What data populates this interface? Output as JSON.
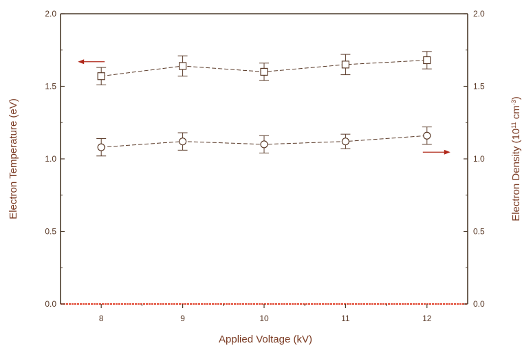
{
  "chart_data": {
    "type": "scatter",
    "title": "",
    "xlabel": "Applied Voltage (kV)",
    "ylabel_left": "Electron Temperature (eV)",
    "ylabel_right_prefix": "Electron Density (10",
    "ylabel_right_exp1": "11",
    "ylabel_right_mid": " cm",
    "ylabel_right_exp2": "-3",
    "ylabel_right_suffix": ")",
    "x_ticks": [
      "8",
      "9",
      "10",
      "11",
      "12"
    ],
    "y_left_ticks": [
      "0.0",
      "0.5",
      "1.0",
      "1.5",
      "2.0"
    ],
    "y_right_ticks": [
      "0.0",
      "0.5",
      "1.0",
      "1.5",
      "2.0"
    ],
    "xlim": [
      7.5,
      12.5
    ],
    "ylim_left": [
      0,
      2
    ],
    "ylim_right": [
      0,
      2
    ],
    "grid": false,
    "legend": "none",
    "series": [
      {
        "marker": "square",
        "axis": "left",
        "x": [
          8,
          9,
          10,
          11,
          12
        ],
        "y": [
          1.57,
          1.64,
          1.6,
          1.65,
          1.68
        ],
        "err": [
          0.06,
          0.07,
          0.06,
          0.07,
          0.06
        ]
      },
      {
        "marker": "circle",
        "axis": "right",
        "x": [
          8,
          9,
          10,
          11,
          12
        ],
        "y": [
          1.08,
          1.12,
          1.1,
          1.12,
          1.16
        ],
        "err": [
          0.06,
          0.06,
          0.06,
          0.05,
          0.06
        ]
      }
    ],
    "colors": {
      "axis": "#4a3a2a",
      "marker": "#5a3a28",
      "left_title": "#7a3a22",
      "left_title_first": "#c0391b",
      "arrow": "#b0281a",
      "baseline": "#e0402a"
    }
  }
}
